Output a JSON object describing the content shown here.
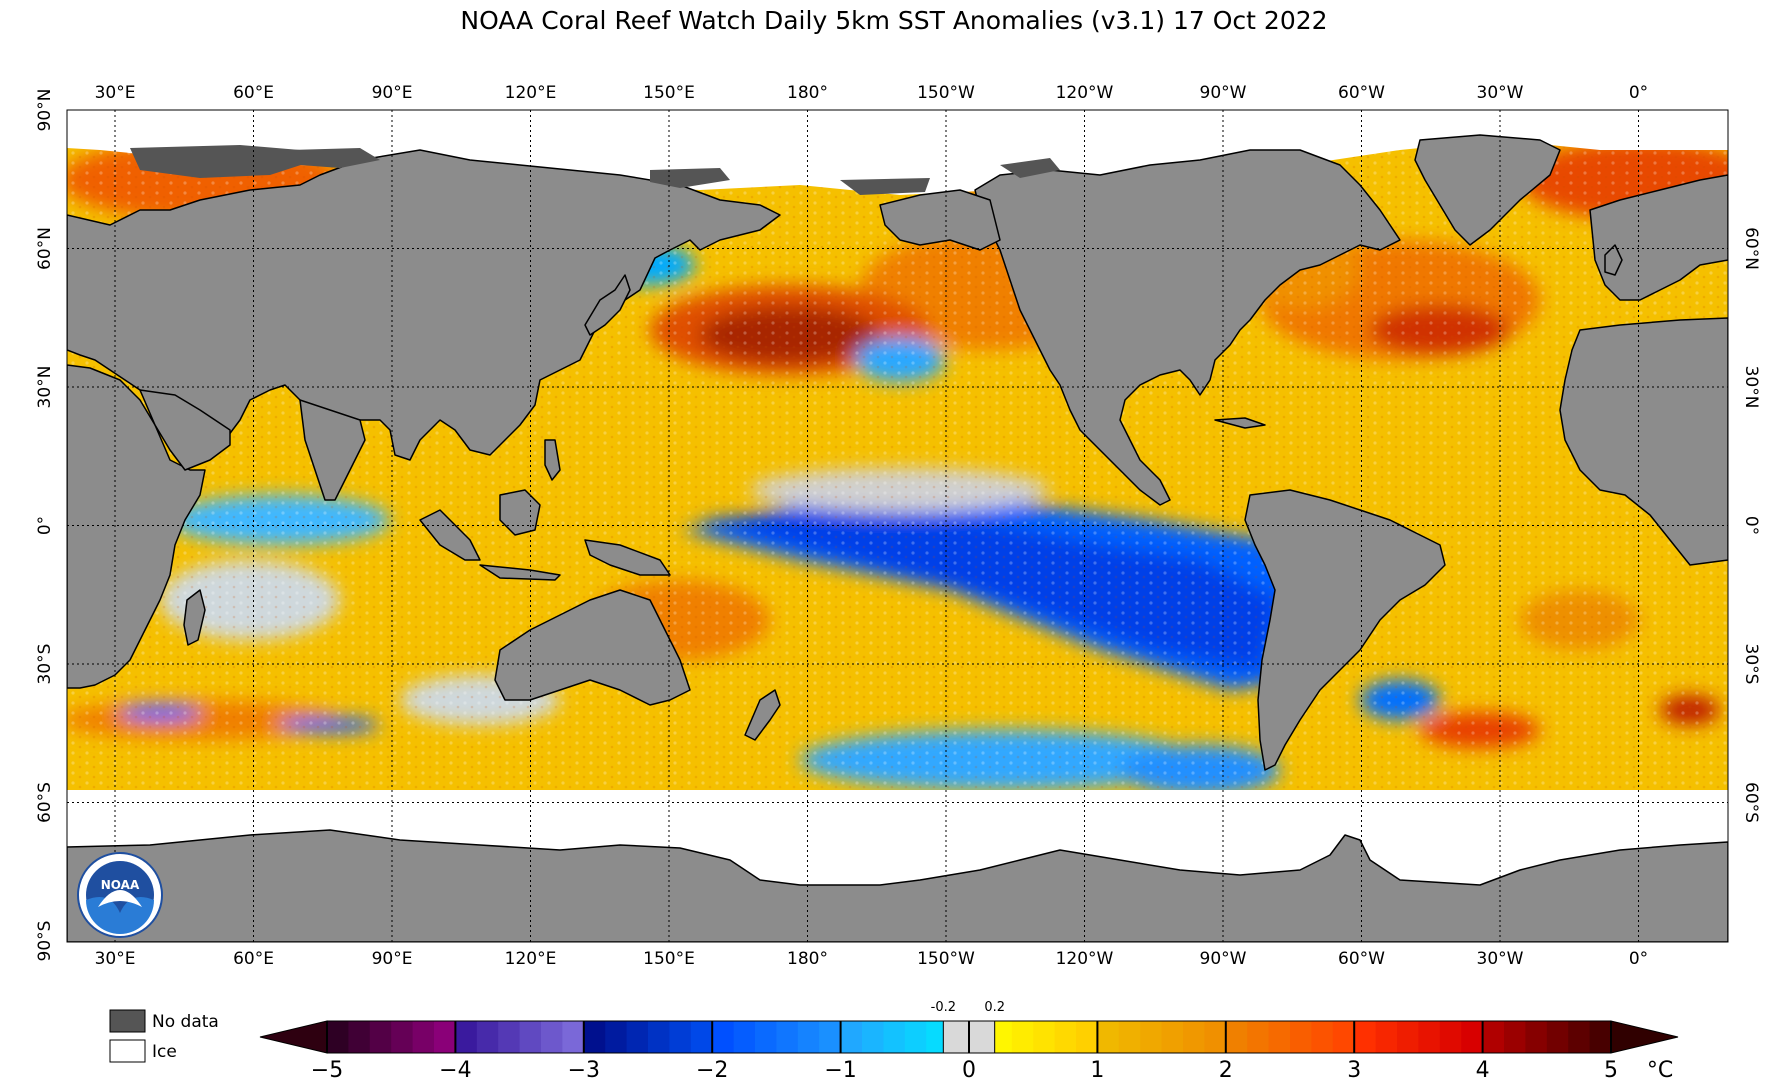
{
  "title": "NOAA Coral Reef Watch Daily 5km SST Anomalies  (v3.1)   17 Oct 2022",
  "longitude_labels": [
    "30°E",
    "60°E",
    "90°E",
    "120°E",
    "150°E",
    "180°",
    "150°W",
    "120°W",
    "90°W",
    "60°W",
    "30°W",
    "0°"
  ],
  "latitude_labels_left": [
    "90°N",
    "60°N",
    "30°N",
    "0°",
    "30°S",
    "60°S",
    "90°S"
  ],
  "latitude_labels_right": [
    "60°N",
    "30°N",
    "0°",
    "30°S",
    "60°S"
  ],
  "legend": {
    "no_data": "No data",
    "ice": "Ice"
  },
  "colorbar": {
    "ticks": [
      "−5",
      "−4",
      "−3",
      "−2",
      "−1",
      "0",
      "1",
      "2",
      "3",
      "4",
      "5"
    ],
    "unit": "°C",
    "small_ticks": [
      "-0.2",
      "0.2"
    ]
  },
  "logo_text": "NOAA",
  "colors": {
    "land": "#8c8c8c",
    "no_data": "#555555",
    "ice": "#ffffff",
    "neutral": "#d9d9d9"
  }
}
